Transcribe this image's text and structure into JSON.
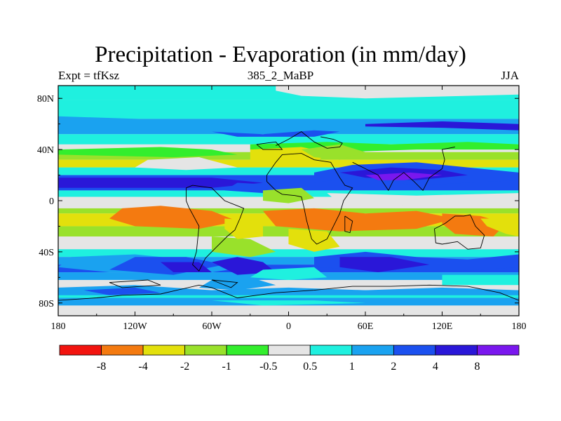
{
  "title": "Precipitation - Evaporation (in mm/day)",
  "experiment_label": "Expt = tfKsz",
  "center_label": "385_2_MaBP",
  "season_label": "JJA",
  "axes": {
    "lat_ticks": [
      {
        "value": 80,
        "label": "80N"
      },
      {
        "value": 40,
        "label": "40N"
      },
      {
        "value": 0,
        "label": "0"
      },
      {
        "value": -40,
        "label": "40S"
      },
      {
        "value": -80,
        "label": "80S"
      }
    ],
    "lon_ticks": [
      {
        "value": -180,
        "label": "180"
      },
      {
        "value": -120,
        "label": "120W"
      },
      {
        "value": -60,
        "label": "60W"
      },
      {
        "value": 0,
        "label": "0"
      },
      {
        "value": 60,
        "label": "60E"
      },
      {
        "value": 120,
        "label": "120E"
      },
      {
        "value": 180,
        "label": "180"
      }
    ],
    "lat_range": [
      -90,
      90
    ],
    "lon_range": [
      -180,
      180
    ]
  },
  "colorbar": {
    "colors": [
      "#f2140f",
      "#f47a10",
      "#e3e00c",
      "#99e12b",
      "#33ee2d",
      "#e5e5e5",
      "#1ff0df",
      "#1aa2f0",
      "#1b50ef",
      "#2a17d8",
      "#7a17ee"
    ],
    "labels": [
      "-8",
      "-4",
      "-2",
      "-1",
      "-0.5",
      "0.5",
      "1",
      "2",
      "4",
      "8"
    ]
  },
  "legend_levels": {
    "red": 0,
    "orange": 1,
    "yellow": 2,
    "yellowgreen": 3,
    "green": 4,
    "gray": 5,
    "cyan": 6,
    "lightblue": 7,
    "blue": 8,
    "darkblue": 9,
    "purple": 10
  }
}
